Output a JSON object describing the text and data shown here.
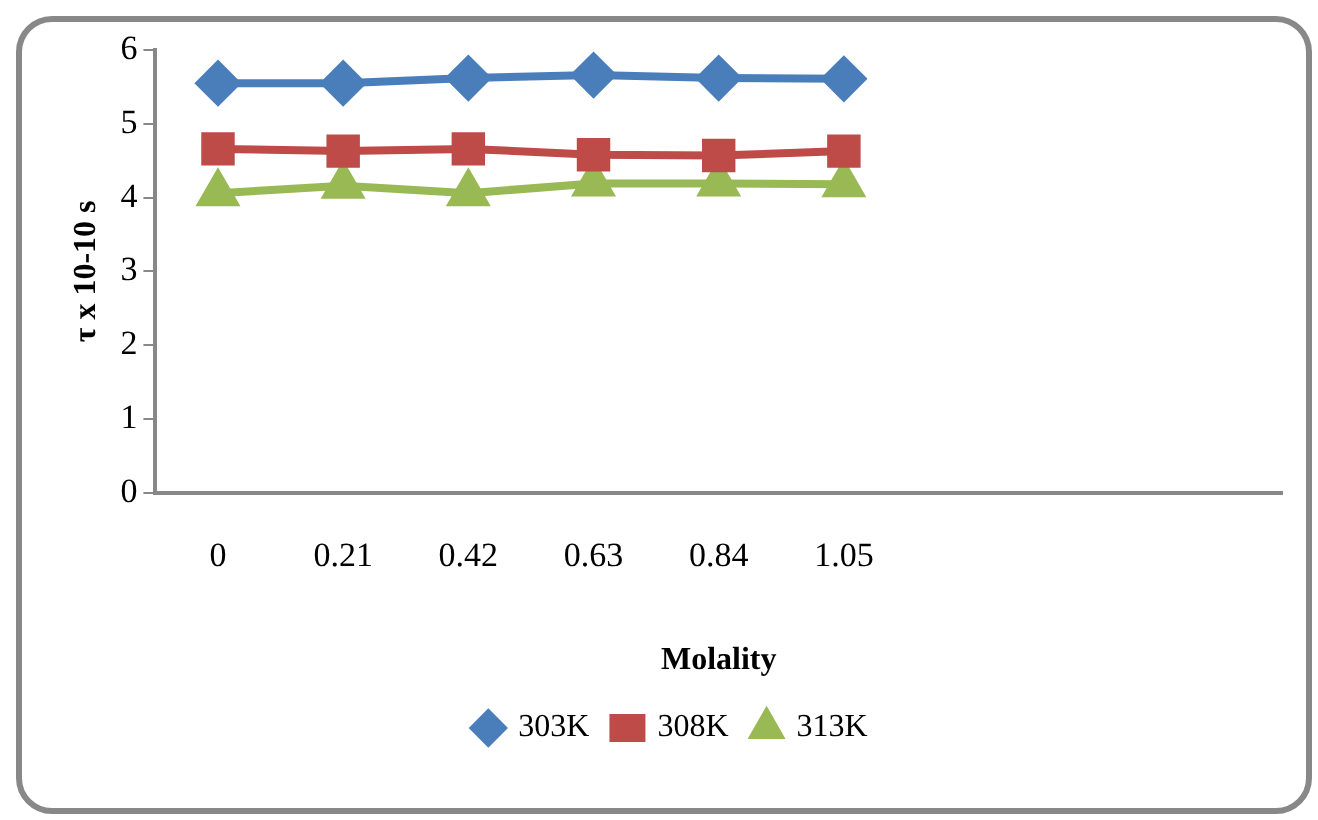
{
  "chart_data": {
    "type": "line",
    "xlabel": "Molality",
    "ylabel": "τ x 10-10 s",
    "categories": [
      "0",
      "0.21",
      "0.42",
      "0.63",
      "0.84",
      "1.05",
      null,
      null,
      null
    ],
    "series": [
      {
        "name": "303K",
        "color": "#4a7ebb",
        "marker": "diamond",
        "values": [
          5.55,
          5.55,
          5.62,
          5.66,
          5.62,
          5.61,
          null,
          null,
          null
        ]
      },
      {
        "name": "308K",
        "color": "#be4b48",
        "marker": "square",
        "values": [
          4.66,
          4.63,
          4.66,
          4.58,
          4.57,
          4.63,
          null,
          null,
          null
        ]
      },
      {
        "name": "313K",
        "color": "#98b954",
        "marker": "triangle",
        "values": [
          4.06,
          4.16,
          4.06,
          4.19,
          4.19,
          4.18,
          null,
          null,
          null
        ]
      }
    ],
    "ylim": [
      0,
      6
    ],
    "yticks": [
      0,
      1,
      2,
      3,
      4,
      5,
      6
    ],
    "grid": false,
    "legend": "bottom"
  }
}
